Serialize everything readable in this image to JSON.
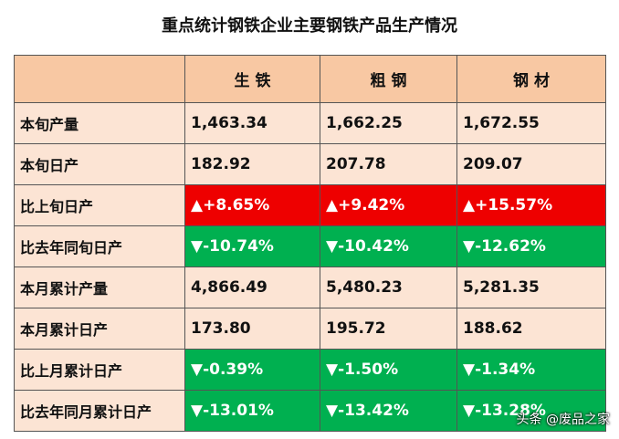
{
  "title": "重点统计钢铁企业主要钢铁产品生产情况",
  "table": {
    "columns": [
      "生 铁",
      "粗 钢",
      "钢 材"
    ],
    "rows": [
      {
        "label": "本旬产量",
        "cells": [
          "1,463.34",
          "1,662.25",
          "1,672.55"
        ]
      },
      {
        "label": "本旬日产",
        "cells": [
          "182.92",
          "207.78",
          "209.07"
        ]
      },
      {
        "label": "比上旬日产",
        "cells": [
          "▲+8.65%",
          "▲+9.42%",
          "▲+15.57%"
        ],
        "fill": "#ee0000"
      },
      {
        "label": "比去年同旬日产",
        "cells": [
          "▼-10.74%",
          "▼-10.42%",
          "▼-12.62%"
        ],
        "fill": "#00b050"
      },
      {
        "label": "本月累计产量",
        "cells": [
          "4,866.49",
          "5,480.23",
          "5,281.35"
        ]
      },
      {
        "label": "本月累计日产",
        "cells": [
          "173.80",
          "195.72",
          "188.62"
        ]
      },
      {
        "label": "比上月累计日产",
        "cells": [
          "▼-0.39%",
          "▼-1.50%",
          "▼-1.34%"
        ],
        "fill": "#00b050"
      },
      {
        "label": "比去年同月累计日产",
        "cells": [
          "▼-13.01%",
          "▼-13.42%",
          "▼-13.28%"
        ],
        "fill": "#00b050"
      }
    ]
  },
  "watermark": "头条 @废品之家"
}
